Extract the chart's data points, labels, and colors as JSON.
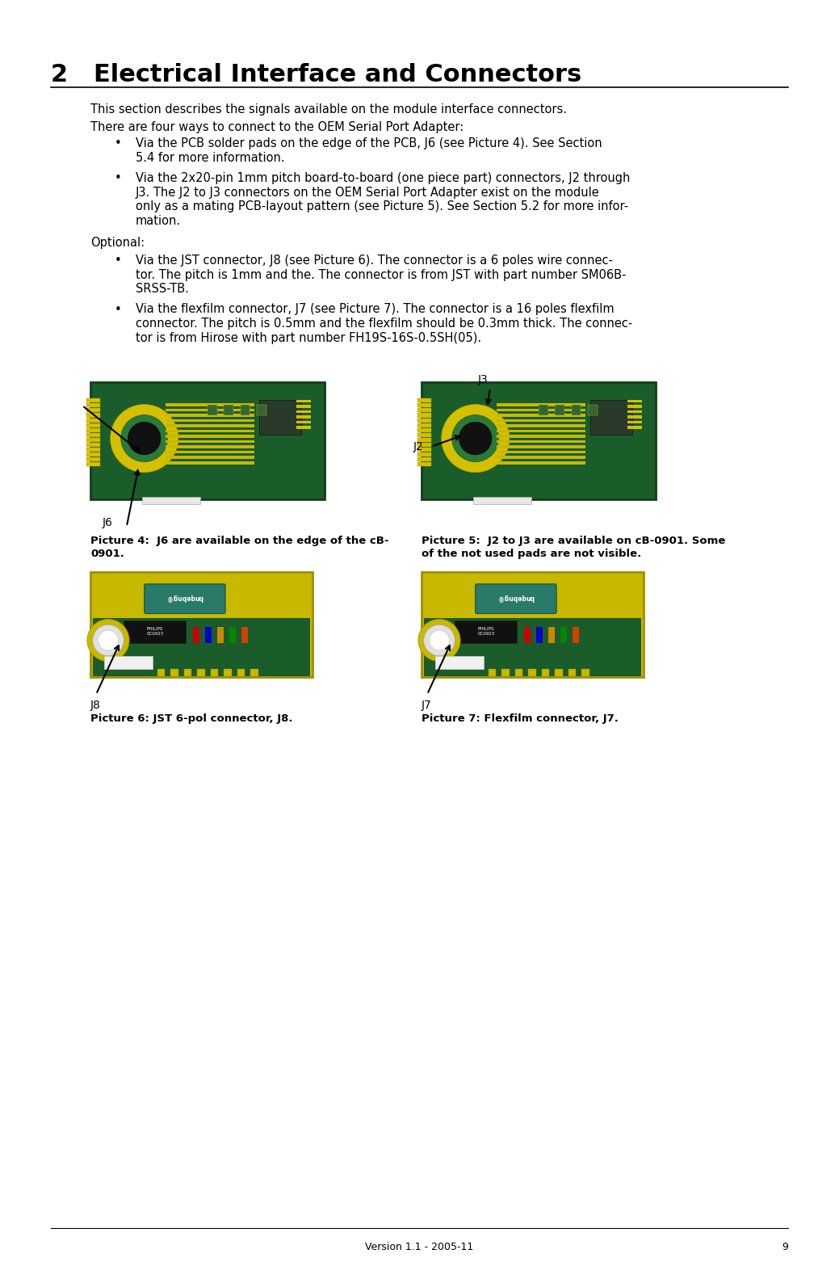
{
  "title": "2   Electrical Interface and Connectors",
  "title_fontsize": 22,
  "bg_color": "#ffffff",
  "text_color": "#000000",
  "body_fontsize": 10.5,
  "footer_text": "Version 1.1 - 2005-11",
  "footer_page": "9",
  "para1": "This section describes the signals available on the module interface connectors.",
  "para2": "There are four ways to connect to the OEM Serial Port Adapter:",
  "bullet1_line1": "Via the PCB solder pads on the edge of the PCB, J6 (see Picture 4). See Section",
  "bullet1_line2": "5.4 for more information.",
  "bullet2_line1": "Via the 2x20-pin 1mm pitch board-to-board (one piece part) connectors, J2 through",
  "bullet2_line2": "J3. The J2 to J3 connectors on the OEM Serial Port Adapter exist on the module",
  "bullet2_line3": "only as a mating PCB-layout pattern (see Picture 5). See Section 5.2 for more infor-",
  "bullet2_line4": "mation.",
  "optional_label": "Optional:",
  "bullet3_line1": "Via the JST connector, J8 (see Picture 6). The connector is a 6 poles wire connec-",
  "bullet3_line2": "tor. The pitch is 1mm and the. The connector is from JST with part number SM06B-",
  "bullet3_line3": "SRSS-TB.",
  "bullet4_line1": "Via the flexfilm connector, J7 (see Picture 7). The connector is a 16 poles flexfilm",
  "bullet4_line2": "connector. The pitch is 0.5mm and the flexfilm should be 0.3mm thick. The connec-",
  "bullet4_line3": "tor is from Hirose with part number FH19S-16S-0.5SH(05).",
  "pic4_cap1": "Picture 4:  J6 are available on the edge of the cB-",
  "pic4_cap2": "0901.",
  "pic5_cap1": "Picture 5:  J2 to J3 are available on cB-0901. Some",
  "pic5_cap2": "of the not used pads are not visible.",
  "pic6_cap": "Picture 6: JST 6-pol connector, J8.",
  "pic7_cap": "Picture 7: Flexfilm connector, J7."
}
